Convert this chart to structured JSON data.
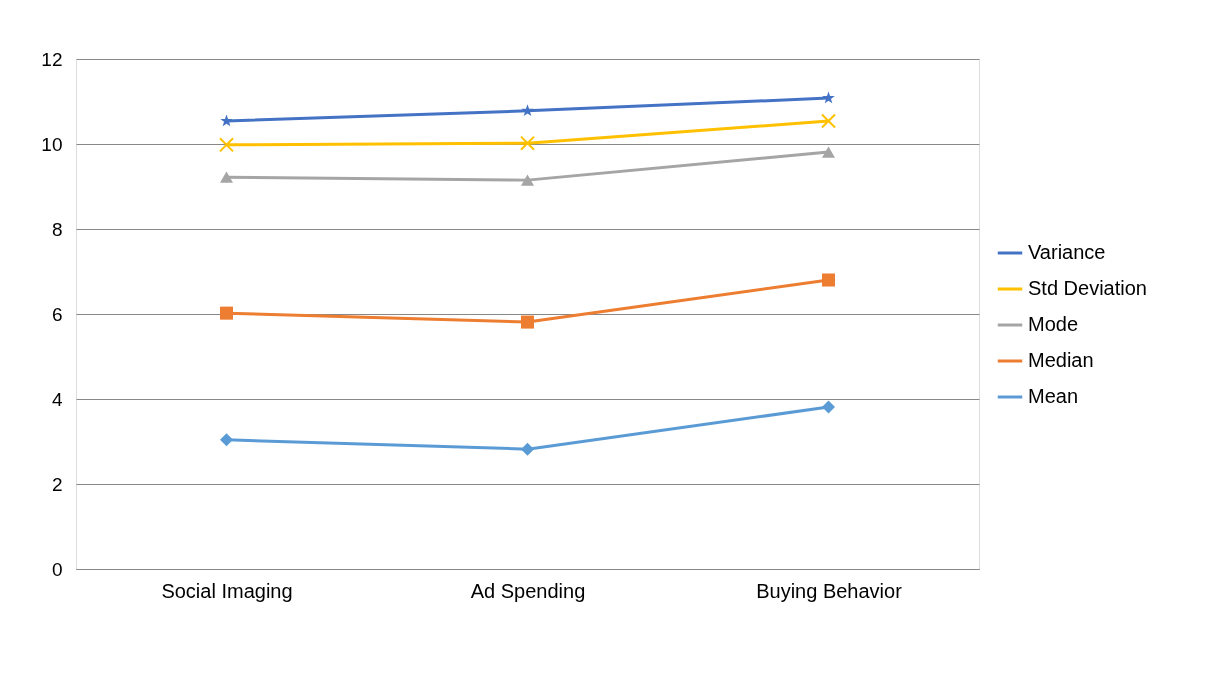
{
  "chart_data": {
    "type": "line",
    "categories": [
      "Social Imaging",
      "Ad  Spending",
      "Buying Behavior"
    ],
    "ylim": [
      0,
      12
    ],
    "yticks": [
      0,
      2,
      4,
      6,
      8,
      10,
      12
    ],
    "grid": "y",
    "legend": "right",
    "series": [
      {
        "name": "Variance",
        "color": "#4472c4",
        "marker": "star",
        "values": [
          10.54,
          10.78,
          11.08
        ]
      },
      {
        "name": "Std Deviation",
        "color": "#ffc000",
        "marker": "cross",
        "values": [
          9.98,
          10.02,
          10.54
        ]
      },
      {
        "name": "Mode",
        "color": "#a5a5a5",
        "marker": "triangle",
        "values": [
          9.22,
          9.15,
          9.81
        ]
      },
      {
        "name": "Median",
        "color": "#ed7d31",
        "marker": "square",
        "values": [
          6.02,
          5.81,
          6.8
        ]
      },
      {
        "name": "Mean",
        "color": "#5b9bd5",
        "marker": "diamond",
        "values": [
          3.04,
          2.82,
          3.81
        ]
      }
    ]
  }
}
